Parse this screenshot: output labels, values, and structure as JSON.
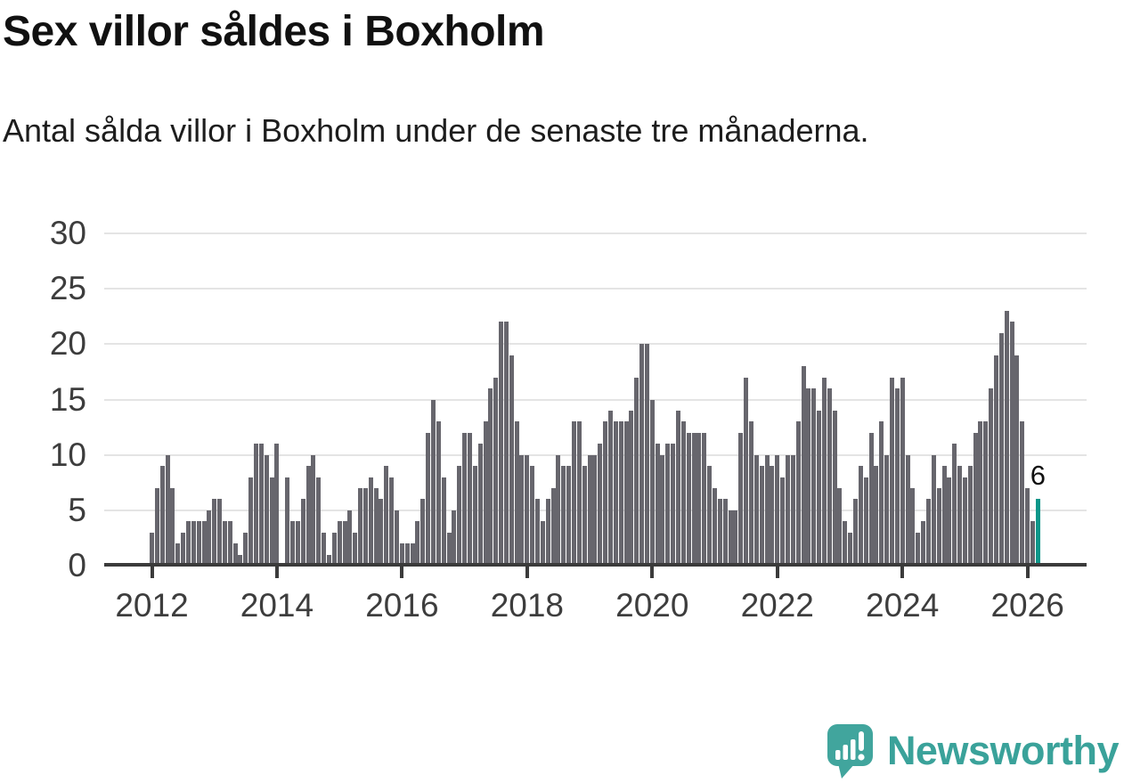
{
  "title": "Sex villor såldes i Boxholm",
  "subtitle": "Antal sålda villor i Boxholm under de senaste tre månaderna.",
  "chart_data": {
    "type": "bar",
    "title": "Sex villor såldes i Boxholm",
    "xlabel": "",
    "ylabel": "",
    "ylim": [
      0,
      30
    ],
    "y_ticks": [
      0,
      5,
      10,
      15,
      20,
      25,
      30
    ],
    "x_tick_labels": [
      "2012",
      "2014",
      "2016",
      "2018",
      "2020",
      "2022",
      "2024",
      "2026"
    ],
    "x_tick_indices": [
      0,
      24,
      48,
      72,
      96,
      120,
      144,
      168
    ],
    "grid": "horizontal",
    "legend": "none",
    "bar_color": "#67666d",
    "highlight_color": "#0c9689",
    "highlight_index": 170,
    "annotation": {
      "text": "6",
      "index": 170
    },
    "values": [
      3,
      7,
      9,
      10,
      7,
      2,
      3,
      4,
      4,
      4,
      4,
      5,
      6,
      6,
      4,
      4,
      2,
      1,
      3,
      8,
      11,
      11,
      10,
      8,
      11,
      0,
      8,
      4,
      4,
      6,
      9,
      10,
      8,
      3,
      1,
      3,
      4,
      4,
      5,
      3,
      7,
      7,
      8,
      7,
      6,
      9,
      8,
      5,
      2,
      2,
      2,
      4,
      6,
      12,
      15,
      13,
      8,
      3,
      5,
      9,
      12,
      12,
      9,
      11,
      13,
      16,
      17,
      22,
      22,
      19,
      13,
      10,
      10,
      9,
      6,
      4,
      6,
      7,
      10,
      9,
      9,
      13,
      13,
      9,
      10,
      10,
      11,
      13,
      14,
      13,
      13,
      13,
      14,
      17,
      20,
      20,
      15,
      11,
      10,
      11,
      11,
      14,
      13,
      12,
      12,
      12,
      12,
      9,
      7,
      6,
      6,
      5,
      5,
      12,
      17,
      13,
      10,
      9,
      10,
      9,
      10,
      8,
      10,
      10,
      13,
      18,
      16,
      16,
      14,
      17,
      16,
      14,
      7,
      4,
      3,
      6,
      9,
      8,
      12,
      9,
      13,
      10,
      17,
      16,
      17,
      10,
      7,
      3,
      4,
      6,
      10,
      7,
      9,
      8,
      11,
      9,
      8,
      9,
      12,
      13,
      13,
      16,
      19,
      21,
      23,
      22,
      19,
      13,
      7,
      4,
      6
    ]
  },
  "logo": {
    "text": "Newsworthy",
    "text_color": "#3aa29a",
    "mark_color": "#41a59d"
  }
}
